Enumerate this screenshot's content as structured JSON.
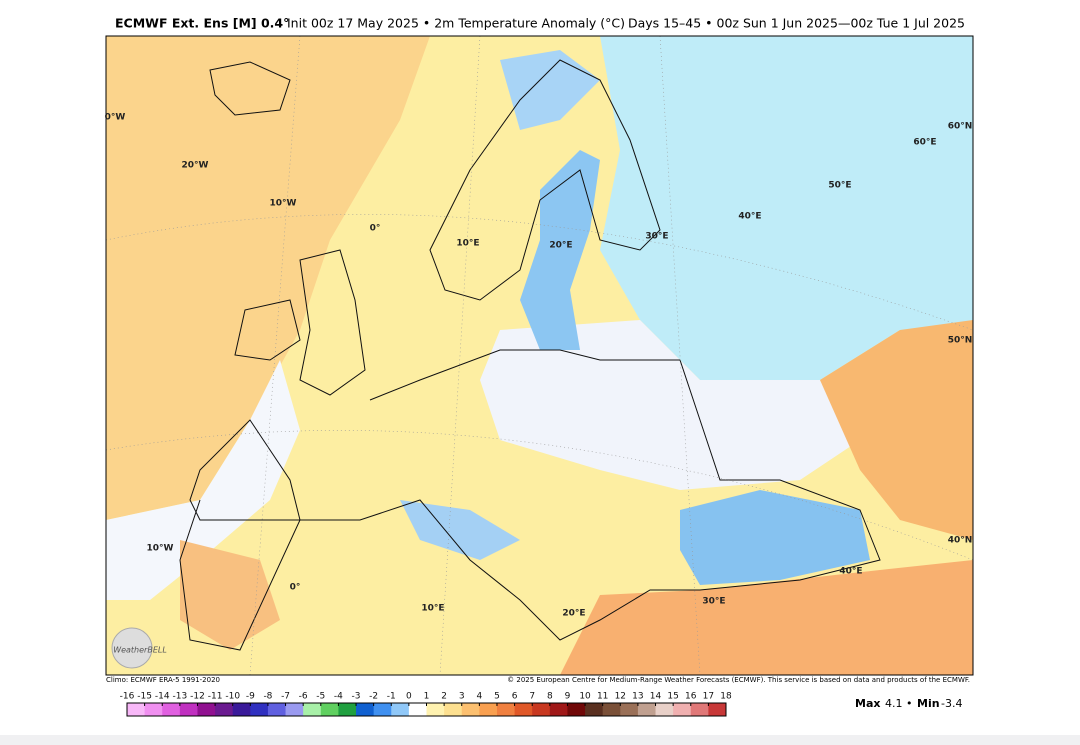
{
  "header": {
    "model": "ECMWF Ext. Ens [M] 0.4°",
    "detail": "Init 00z 17 May 2025 • 2m Temperature Anomaly (°C)",
    "period": "Days 15–45 • 00z Sun 1 Jun 2025—00z Tue 1 Jul 2025"
  },
  "map": {
    "grid_labels": [
      "0°W",
      "20°W",
      "10°W",
      "0°",
      "10°E",
      "20°E",
      "30°E",
      "40°E",
      "50°E",
      "60°E",
      "60°N",
      "50°N",
      "40°N",
      "10°W",
      "0°",
      "10°E",
      "20°E",
      "30°E",
      "40°E"
    ],
    "logo": "WeatherBELL"
  },
  "footer": {
    "climo": "Climo: ECMWF ERA-5 1991-2020",
    "copyright": "© 2025 European Centre for Medium-Range Weather Forecasts (ECMWF). This service is based on data and products of the ECMWF."
  },
  "colorbar": {
    "ticks": [
      -16,
      -15,
      -14,
      -13,
      -12,
      -11,
      -10,
      -9,
      -8,
      -7,
      -6,
      -5,
      -4,
      -3,
      -2,
      -1,
      0,
      1,
      2,
      3,
      4,
      5,
      6,
      7,
      8,
      9,
      10,
      11,
      12,
      13,
      14,
      15,
      16,
      17,
      18
    ],
    "colors": [
      "#f8b8f8",
      "#f090f0",
      "#e060e0",
      "#c030c0",
      "#901090",
      "#6a1a90",
      "#3a1a9a",
      "#3030c0",
      "#6060e0",
      "#9a9af0",
      "#a8f0a8",
      "#60d060",
      "#20a040",
      "#1060d0",
      "#4090f0",
      "#90c8f8",
      "#ffffff",
      "#fff2b0",
      "#fde090",
      "#fcc070",
      "#f9a050",
      "#f08040",
      "#e05828",
      "#c83820",
      "#a01818",
      "#700808",
      "#5a3020",
      "#7a5038",
      "#9a7058",
      "#c0a090",
      "#e8d0c8",
      "#f0b0b0",
      "#e07878",
      "#c83838"
    ]
  },
  "stats": {
    "max_label": "Max",
    "max": 4.1,
    "min_label": "Min",
    "min": -3.4
  }
}
